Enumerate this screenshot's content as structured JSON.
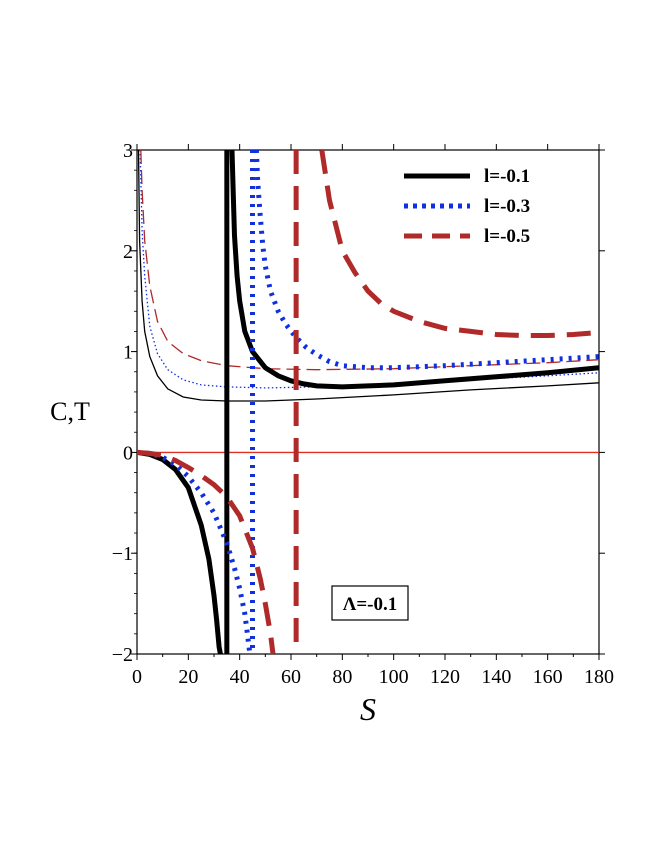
{
  "chart_data": {
    "type": "line",
    "title": "",
    "xlabel": "S",
    "ylabel": "C,T",
    "xlim": [
      0,
      180
    ],
    "ylim": [
      -2,
      3
    ],
    "x_ticks": [
      0,
      20,
      40,
      60,
      80,
      100,
      120,
      140,
      160,
      180
    ],
    "y_ticks": [
      -2,
      -1,
      0,
      1,
      2,
      3
    ],
    "x_tick_labels": [
      "0",
      "20",
      "40",
      "60",
      "80",
      "100",
      "120",
      "140",
      "160",
      "180"
    ],
    "y_tick_labels": [
      "−2",
      "−1",
      "0",
      "1",
      "2",
      "3"
    ],
    "grid": false,
    "legend_position": "top-right",
    "annotation": "Λ=-0.1",
    "zero_line_color": "#e03020",
    "series": [
      {
        "name": "l=-0.1",
        "quantity": "C",
        "color": "#000000",
        "style": "solid",
        "weight": "thick",
        "in_legend": true,
        "asymptote": 35,
        "branches": [
          {
            "x": [
              0,
              5,
              10,
              15,
              20,
              25,
              28,
              30,
              31,
              32,
              32.5
            ],
            "y": [
              0,
              -0.02,
              -0.07,
              -0.17,
              -0.35,
              -0.72,
              -1.06,
              -1.42,
              -1.66,
              -1.93,
              -2.0
            ]
          },
          {
            "x": [
              37,
              37.5,
              38,
              39,
              40,
              42,
              45,
              50,
              55,
              60,
              65,
              70,
              80,
              90,
              100,
              120,
              140,
              160,
              180
            ],
            "y": [
              3.0,
              2.55,
              2.15,
              1.75,
              1.5,
              1.2,
              1.0,
              0.84,
              0.76,
              0.71,
              0.68,
              0.66,
              0.65,
              0.66,
              0.67,
              0.71,
              0.75,
              0.79,
              0.84
            ]
          }
        ]
      },
      {
        "name": "l=-0.3",
        "quantity": "C",
        "color": "#1030e0",
        "style": "dotted",
        "weight": "thick",
        "in_legend": true,
        "asymptote": 45,
        "branches": [
          {
            "x": [
              0,
              5,
              10,
              15,
              20,
              25,
              30,
              35,
              38,
              40,
              42,
              43,
              44
            ],
            "y": [
              0,
              -0.01,
              -0.05,
              -0.12,
              -0.24,
              -0.4,
              -0.6,
              -0.9,
              -1.15,
              -1.35,
              -1.6,
              -1.8,
              -2.0
            ]
          },
          {
            "x": [
              46.5,
              47,
              48,
              49,
              50,
              52,
              55,
              58,
              62,
              66,
              70,
              75,
              80,
              90,
              100,
              120,
              140,
              160,
              180
            ],
            "y": [
              3.0,
              2.7,
              2.35,
              2.05,
              1.85,
              1.6,
              1.4,
              1.27,
              1.14,
              1.04,
              0.97,
              0.9,
              0.86,
              0.84,
              0.84,
              0.86,
              0.89,
              0.92,
              0.95
            ]
          }
        ]
      },
      {
        "name": "l=-0.5",
        "quantity": "C",
        "color": "#b02a2a",
        "style": "dashed",
        "weight": "thick",
        "in_legend": true,
        "asymptote": 62,
        "branches": [
          {
            "x": [
              0,
              5,
              10,
              15,
              20,
              25,
              30,
              35,
              40,
              45,
              48,
              50,
              52,
              53
            ],
            "y": [
              0,
              -0.01,
              -0.03,
              -0.08,
              -0.15,
              -0.23,
              -0.32,
              -0.44,
              -0.63,
              -0.95,
              -1.25,
              -1.5,
              -1.8,
              -2.0
            ]
          },
          {
            "x": [
              72,
              75,
              80,
              85,
              90,
              95,
              100,
              110,
              120,
              130,
              140,
              150,
              160,
              170,
              180
            ],
            "y": [
              3.0,
              2.5,
              2.0,
              1.78,
              1.6,
              1.48,
              1.4,
              1.3,
              1.23,
              1.2,
              1.17,
              1.16,
              1.16,
              1.17,
              1.19
            ]
          }
        ]
      },
      {
        "name": "T (l=-0.1)",
        "quantity": "T",
        "color": "#000000",
        "style": "solid",
        "weight": "thin",
        "in_legend": false,
        "branches": [
          {
            "x": [
              0.6,
              1,
              2,
              3,
              5,
              8,
              12,
              18,
              25,
              35,
              50,
              70,
              100,
              130,
              160,
              180
            ],
            "y": [
              3.0,
              2.1,
              1.5,
              1.2,
              0.95,
              0.76,
              0.63,
              0.55,
              0.52,
              0.51,
              0.51,
              0.53,
              0.57,
              0.62,
              0.66,
              0.69
            ]
          }
        ]
      },
      {
        "name": "T (l=-0.3)",
        "quantity": "T",
        "color": "#1030e0",
        "style": "dotted",
        "weight": "thin",
        "in_legend": false,
        "branches": [
          {
            "x": [
              1.2,
              2,
              3,
              5,
              8,
              12,
              18,
              25,
              35,
              50,
              70,
              100,
              130,
              160,
              180
            ],
            "y": [
              3.0,
              2.2,
              1.75,
              1.25,
              0.98,
              0.82,
              0.72,
              0.67,
              0.65,
              0.64,
              0.65,
              0.68,
              0.72,
              0.76,
              0.79
            ]
          }
        ]
      },
      {
        "name": "T (l=-0.5)",
        "quantity": "T",
        "color": "#b02a2a",
        "style": "dashed",
        "weight": "thin",
        "in_legend": false,
        "branches": [
          {
            "x": [
              1.5,
              2,
              3,
              5,
              8,
              12,
              18,
              25,
              35,
              50,
              70,
              100,
              130,
              160,
              180
            ],
            "y": [
              3.0,
              2.6,
              2.1,
              1.65,
              1.3,
              1.1,
              0.98,
              0.91,
              0.86,
              0.83,
              0.82,
              0.83,
              0.86,
              0.89,
              0.92
            ]
          }
        ]
      }
    ]
  }
}
